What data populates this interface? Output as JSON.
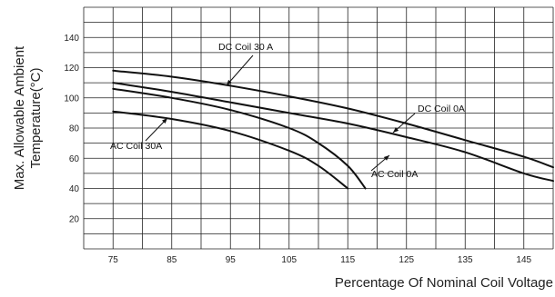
{
  "chart_data": {
    "type": "line",
    "xlabel": "Percentage Of Nominal Coil Voltage",
    "ylabel_lines": [
      "Max. Allowable Ambient",
      "Temperature(°C)"
    ],
    "xlim": [
      70,
      150
    ],
    "ylim": [
      0,
      160
    ],
    "x_ticks": [
      75,
      85,
      95,
      105,
      115,
      125,
      135,
      145
    ],
    "y_ticks": [
      20,
      40,
      60,
      80,
      100,
      120,
      140
    ],
    "grid": true,
    "colors": {
      "line": "#111111",
      "grid": "#222222",
      "background": "#ffffff"
    },
    "series": [
      {
        "name": "DC Coil 30 A",
        "x": [
          75,
          85,
          95,
          105,
          115,
          125,
          135,
          145,
          150
        ],
        "y": [
          118,
          114,
          108,
          101,
          93,
          83,
          72,
          61,
          54
        ]
      },
      {
        "name": "DC Coil 0A",
        "x": [
          75,
          85,
          95,
          105,
          115,
          125,
          135,
          145,
          150
        ],
        "y": [
          110,
          104,
          97,
          90,
          83,
          74,
          64,
          50,
          45
        ]
      },
      {
        "name": "AC Coil 0A",
        "x": [
          75,
          85,
          95,
          105,
          110,
          115,
          118
        ],
        "y": [
          106,
          100,
          92,
          80,
          70,
          55,
          40
        ]
      },
      {
        "name": "AC Coil 30A",
        "x": [
          75,
          85,
          95,
          105,
          110,
          115
        ],
        "y": [
          91,
          86,
          78,
          65,
          55,
          40
        ]
      }
    ],
    "annotations": [
      {
        "text": "DC Coil 30 A",
        "series": "DC Coil 30 A"
      },
      {
        "text": "DC Coil 0A",
        "series": "DC Coil 0A"
      },
      {
        "text": "AC Coil 0A",
        "series": "AC Coil 0A"
      },
      {
        "text": "AC Coil 30A",
        "series": "AC Coil 30A"
      }
    ]
  }
}
